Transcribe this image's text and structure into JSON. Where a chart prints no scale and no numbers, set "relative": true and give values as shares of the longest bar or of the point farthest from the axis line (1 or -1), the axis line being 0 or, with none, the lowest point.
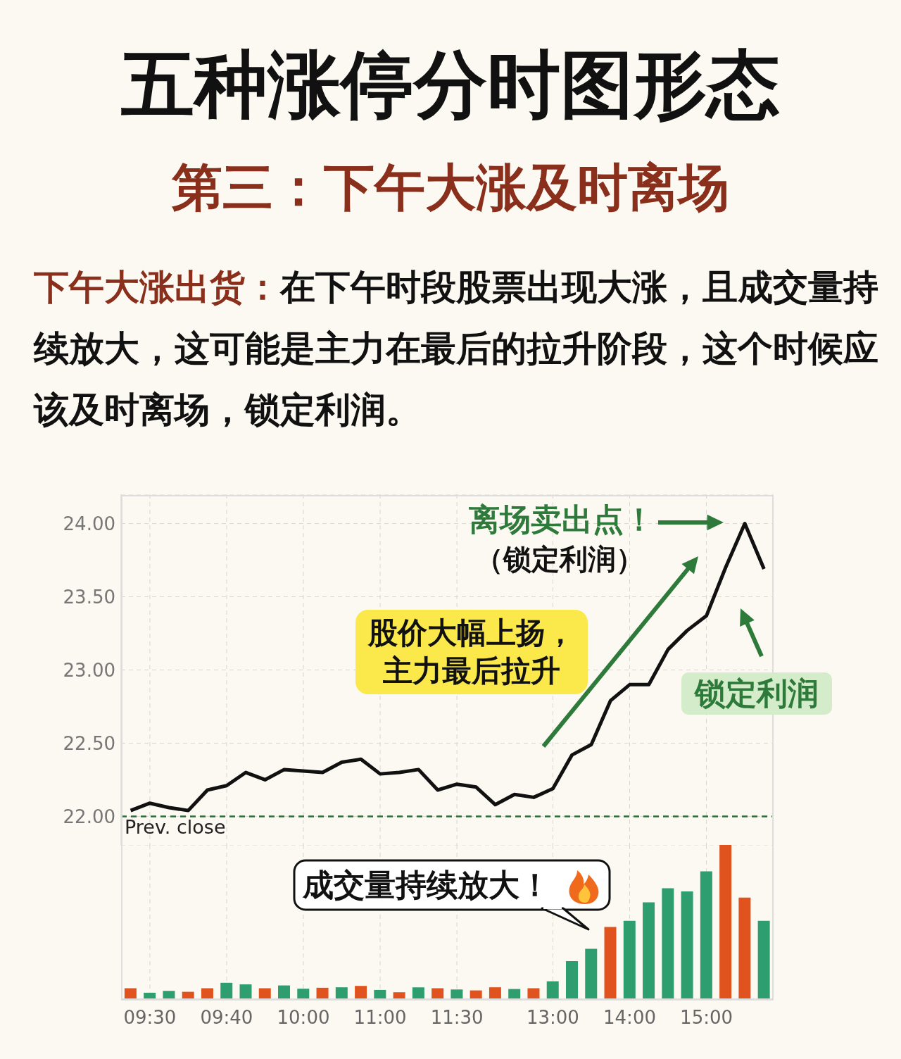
{
  "chart_data": [
    {
      "type": "line",
      "title": "五种涨停分时图形态",
      "subtitle": "第三：下午大涨及时离场",
      "categories": [
        null,
        null,
        null,
        null,
        null,
        null,
        null,
        null,
        null,
        null,
        null,
        null,
        null,
        null,
        null,
        null,
        null,
        null,
        null,
        null,
        null,
        null,
        null,
        null,
        null,
        null,
        null,
        null,
        null,
        null,
        null,
        null,
        null,
        null
      ],
      "values": [
        22.04,
        22.09,
        22.06,
        22.04,
        22.18,
        22.21,
        22.3,
        22.25,
        22.32,
        22.31,
        22.3,
        22.37,
        22.39,
        22.29,
        22.3,
        22.32,
        22.18,
        22.22,
        22.2,
        22.08,
        22.15,
        22.13,
        22.19,
        22.42,
        22.49,
        22.79,
        22.9,
        22.9,
        23.14,
        23.27,
        23.37,
        23.7,
        24.0,
        23.69
      ],
      "color": "#111111",
      "line_style": "solid",
      "ylim": [
        21.8,
        24.2
      ],
      "yticks": [
        {
          "value": 22,
          "label": "22.00"
        },
        {
          "value": 22.5,
          "label": "22.50"
        },
        {
          "value": 23,
          "label": "23.00"
        },
        {
          "value": 23.5,
          "label": "23.50"
        },
        {
          "value": 24,
          "label": "24.00"
        }
      ],
      "tick_labels": "y",
      "grid": true,
      "ref_lines": [
        {
          "axis": "y",
          "value": 22,
          "label": "Prev. close",
          "color": "#2e6b3a",
          "line_style": "dashed"
        }
      ],
      "annotations": [
        "下午大涨出货：",
        "在下午时段股票出现大涨，且成交量持续放大，这可能是主力在最后的拉升阶段，这个时候应该及时离场，锁定利润。",
        "离场卖出点！",
        "（锁定利润）",
        "股价大幅上扬，主力最后拉升",
        "锁定利润"
      ]
    },
    {
      "type": "bar",
      "relative": true,
      "categories": [
        null,
        "09:30",
        null,
        null,
        null,
        "09:40",
        null,
        null,
        null,
        "10:00",
        null,
        null,
        null,
        "11:00",
        null,
        null,
        null,
        "11:30",
        null,
        null,
        null,
        null,
        "13:00",
        null,
        null,
        null,
        "14:00",
        null,
        null,
        null,
        "15:00",
        null,
        null,
        null
      ],
      "values": [
        0.075,
        0.046,
        0.058,
        0.052,
        0.075,
        0.11,
        0.1,
        0.075,
        0.093,
        0.072,
        0.078,
        0.081,
        0.09,
        0.064,
        0.049,
        0.081,
        0.075,
        0.067,
        0.061,
        0.081,
        0.07,
        0.075,
        0.12,
        0.25,
        0.33,
        0.47,
        0.51,
        0.63,
        0.72,
        0.7,
        0.83,
        1,
        0.66,
        0.51
      ],
      "colors": [
        "#e0531f",
        "#2e9e6e",
        "#2e9e6e",
        "#e0531f",
        "#e0531f",
        "#2e9e6e",
        "#2e9e6e",
        "#e0531f",
        "#2e9e6e",
        "#2e9e6e",
        "#e0531f",
        "#2e9e6e",
        "#e0531f",
        "#2e9e6e",
        "#e0531f",
        "#2e9e6e",
        "#e0531f",
        "#2e9e6e",
        "#e0531f",
        "#e0531f",
        "#2e9e6e",
        "#e0531f",
        "#2e9e6e",
        "#2e9e6e",
        "#2e9e6e",
        "#e0531f",
        "#2e9e6e",
        "#2e9e6e",
        "#2e9e6e",
        "#2e9e6e",
        "#2e9e6e",
        "#e0531f",
        "#e0531f",
        "#2e9e6e"
      ],
      "tick_labels": "x",
      "grid": "x",
      "annotations": [
        "成交量持续放大！"
      ]
    }
  ]
}
